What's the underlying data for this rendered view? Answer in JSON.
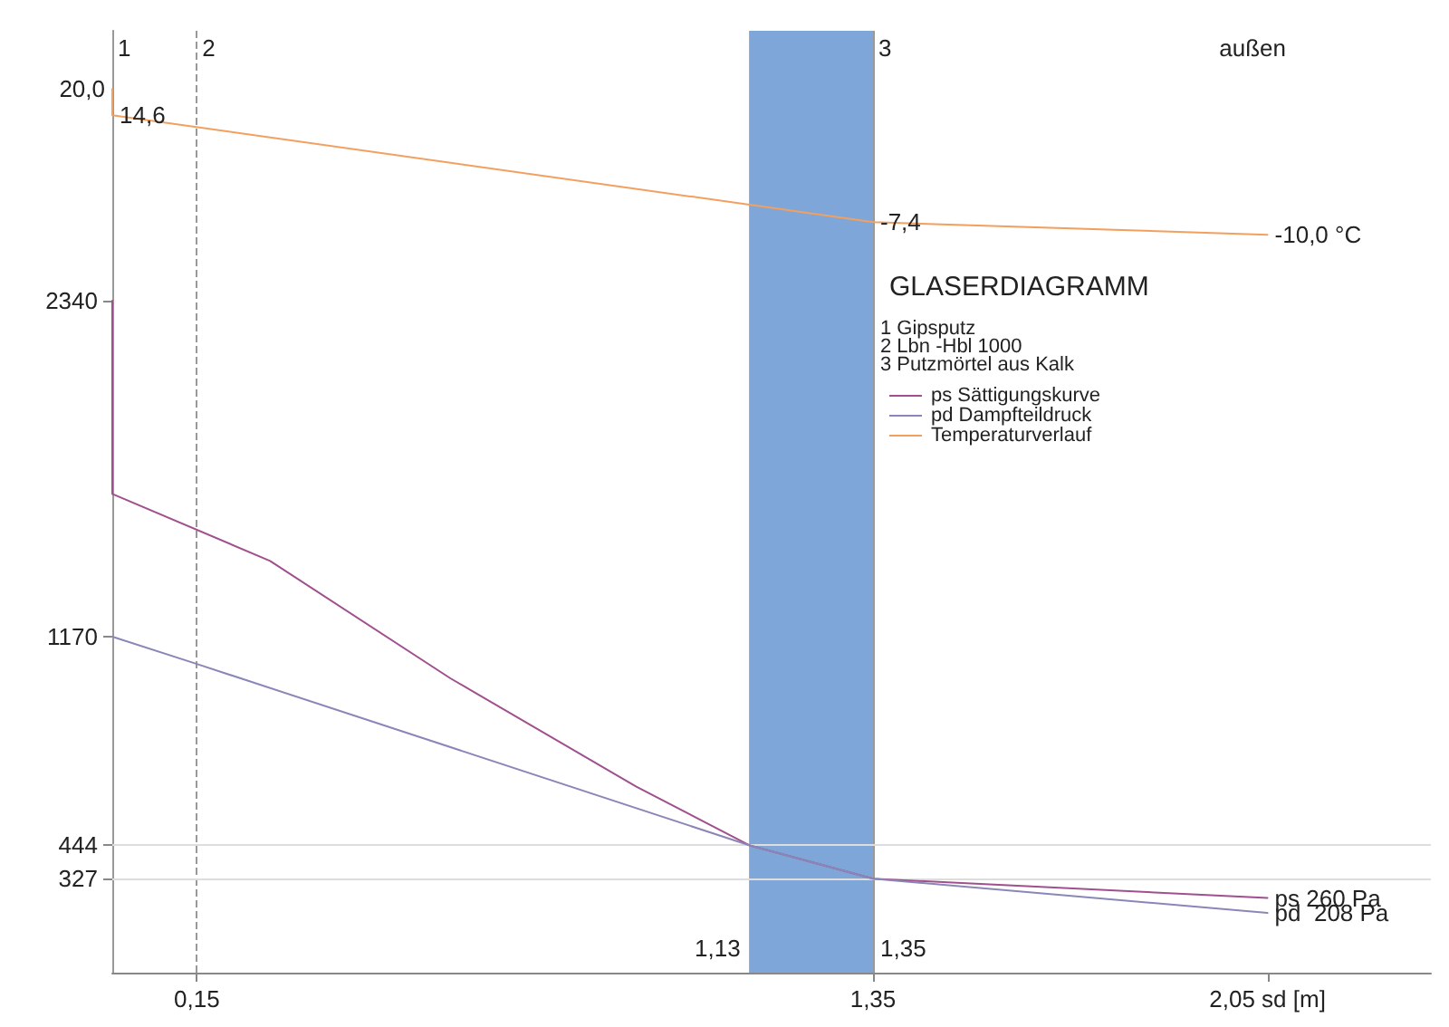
{
  "chart_data": {
    "type": "line",
    "title": "GLASERDIAGRAMM",
    "xlim": [
      0,
      2.34
    ],
    "xticks": [
      {
        "value": 0.15,
        "label": "0,15"
      },
      {
        "value": 1.35,
        "label": "1,35"
      },
      {
        "value": 2.05,
        "label": "2,05 sd [m]"
      }
    ],
    "ylim": [
      0,
      3280
    ],
    "yticks": [
      327,
      444,
      1170,
      2340
    ],
    "y2lim": [
      -162,
      32
    ],
    "grid": false,
    "legend": "right",
    "marker": "none",
    "line_style": "solid",
    "series": [
      {
        "name": "ps Sättigungskurve",
        "color": "#a0508c",
        "x": [
          0,
          0,
          0.28,
          0.6,
          0.93,
          1.13,
          1.35,
          2.05
        ],
        "values": [
          2340,
          1667,
          1434,
          1025,
          648,
          444,
          327,
          260
        ],
        "value_labels": [
          null,
          null,
          null,
          null,
          null,
          null,
          null,
          "ps 260 Pa"
        ]
      },
      {
        "name": "pd Dampfteildruck",
        "color": "#8a86b8",
        "x": [
          0,
          0.15,
          1.13,
          1.35,
          2.05
        ],
        "values": [
          1170,
          1075,
          444,
          327,
          208
        ],
        "value_labels": [
          null,
          null,
          null,
          null,
          "pd  208 Pa"
        ]
      },
      {
        "name": "Temperaturverlauf",
        "color": "#f2a060",
        "axis": "y2",
        "x": [
          0,
          0,
          1.35,
          2.05
        ],
        "values": [
          20,
          14.6,
          -7.4,
          -10
        ],
        "value_labels": [
          "20,0",
          "14,6",
          "-7,4",
          "-10,0 °C"
        ]
      }
    ],
    "ref_lines": [
      {
        "axis": "x",
        "value": 0,
        "label": null,
        "color": "#999999",
        "line_style": "solid"
      },
      {
        "axis": "x",
        "value": 0.15,
        "label": null,
        "color": "#999999",
        "line_style": "dashed"
      },
      {
        "axis": "x",
        "value": 1.35,
        "label": null,
        "color": "#999999",
        "line_style": "solid"
      },
      {
        "axis": "y",
        "value": 444,
        "label": null,
        "color": "#dddddd",
        "line_style": "solid"
      },
      {
        "axis": "y",
        "value": 327,
        "label": null,
        "color": "#dddddd",
        "line_style": "solid"
      }
    ],
    "bands": [
      {
        "axis": "x",
        "from": 1.13,
        "to": 1.35,
        "label": null,
        "color": "#7fa6d8"
      }
    ],
    "annotations": [
      "außen",
      "1 Gipsputz",
      "2 Lbn -Hbl 1000",
      "3 Putzmörtel aus Kalk",
      {
        "text": "1,13",
        "x": 1.13,
        "y": 0
      },
      {
        "text": "1,35",
        "x": 1.35,
        "y": 0
      },
      {
        "text": "1",
        "x": 0,
        "y": 3280
      },
      {
        "text": "2",
        "x": 0.15,
        "y": 3280
      },
      {
        "text": "3",
        "x": 1.35,
        "y": 3280
      }
    ]
  }
}
